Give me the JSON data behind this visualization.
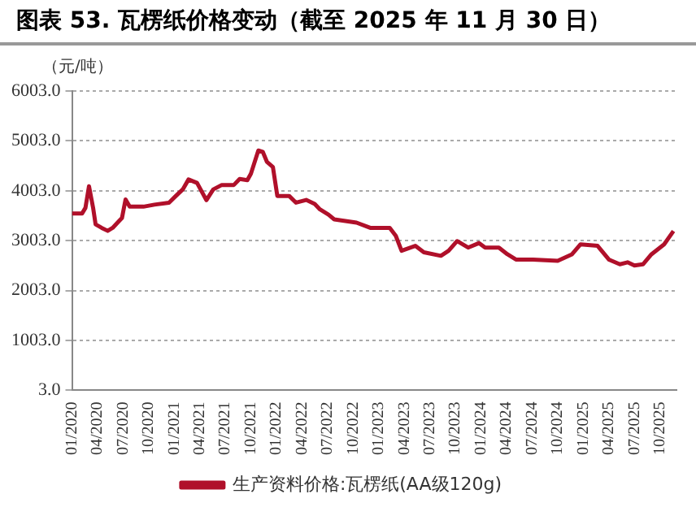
{
  "chart_data": {
    "type": "line",
    "title": "图表 53. 瓦楞纸价格变动（截至 2025 年 11 月 30 日）",
    "ylabel": "（元/吨）",
    "x": [
      "2020-01-01",
      "2020-02-07",
      "2020-02-19",
      "2020-03-01",
      "2020-03-16",
      "2020-03-25",
      "2020-04-16",
      "2020-05-07",
      "2020-05-25",
      "2020-06-16",
      "2020-06-28",
      "2020-07-10",
      "2020-07-25",
      "2020-09-13",
      "2020-10-22",
      "2020-12-13",
      "2021-01-07",
      "2021-02-01",
      "2021-02-22",
      "2021-03-22",
      "2021-04-25",
      "2021-05-19",
      "2021-06-19",
      "2021-08-01",
      "2021-08-22",
      "2021-09-19",
      "2021-10-01",
      "2021-10-28",
      "2021-11-13",
      "2021-11-28",
      "2021-12-19",
      "2022-01-04",
      "2022-02-16",
      "2022-03-10",
      "2022-04-16",
      "2022-05-16",
      "2022-06-04",
      "2022-07-04",
      "2022-07-25",
      "2022-10-13",
      "2022-12-01",
      "2023-02-10",
      "2023-03-01",
      "2023-03-22",
      "2023-05-10",
      "2023-06-10",
      "2023-08-10",
      "2023-09-07",
      "2023-10-07",
      "2023-11-16",
      "2023-12-25",
      "2024-01-16",
      "2024-03-04",
      "2024-04-04",
      "2024-05-04",
      "2024-07-04",
      "2024-10-01",
      "2024-11-22",
      "2024-12-22",
      "2025-02-22",
      "2025-04-01",
      "2025-05-10",
      "2025-06-07",
      "2025-07-01",
      "2025-08-01",
      "2025-09-01",
      "2025-10-16",
      "2025-11-19"
    ],
    "series": [
      {
        "name": "生产资料价格:瓦楞纸(AA级120g)",
        "color": "#b0102a",
        "values": [
          3550,
          3550,
          3660,
          4095,
          3660,
          3330,
          3260,
          3200,
          3260,
          3390,
          3460,
          3830,
          3685,
          3685,
          3725,
          3765,
          3900,
          4030,
          4230,
          4160,
          3815,
          4030,
          4120,
          4120,
          4240,
          4215,
          4345,
          4810,
          4785,
          4585,
          4480,
          3900,
          3900,
          3765,
          3820,
          3740,
          3630,
          3525,
          3430,
          3365,
          3260,
          3260,
          3100,
          2800,
          2900,
          2770,
          2700,
          2800,
          2995,
          2865,
          2955,
          2865,
          2865,
          2730,
          2625,
          2625,
          2600,
          2730,
          2930,
          2900,
          2625,
          2530,
          2570,
          2505,
          2530,
          2730,
          2930,
          3195
        ]
      }
    ],
    "xlim": [
      "2020-01-01",
      "2025-11-30"
    ],
    "xticks": [
      {
        "value": "2020-01",
        "label": "01/2020"
      },
      {
        "value": "2020-04",
        "label": "04/2020"
      },
      {
        "value": "2020-07",
        "label": "07/2020"
      },
      {
        "value": "2020-10",
        "label": "10/2020"
      },
      {
        "value": "2021-01",
        "label": "01/2021"
      },
      {
        "value": "2021-04",
        "label": "04/2021"
      },
      {
        "value": "2021-07",
        "label": "07/2021"
      },
      {
        "value": "2021-10",
        "label": "10/2021"
      },
      {
        "value": "2022-01",
        "label": "01/2022"
      },
      {
        "value": "2022-04",
        "label": "04/2022"
      },
      {
        "value": "2022-07",
        "label": "07/2022"
      },
      {
        "value": "2022-10",
        "label": "10/2022"
      },
      {
        "value": "2023-01",
        "label": "01/2023"
      },
      {
        "value": "2023-04",
        "label": "04/2023"
      },
      {
        "value": "2023-07",
        "label": "07/2023"
      },
      {
        "value": "2023-10",
        "label": "10/2023"
      },
      {
        "value": "2024-01",
        "label": "01/2024"
      },
      {
        "value": "2024-04",
        "label": "04/2024"
      },
      {
        "value": "2024-07",
        "label": "07/2024"
      },
      {
        "value": "2024-10",
        "label": "10/2024"
      },
      {
        "value": "2025-01",
        "label": "01/2025"
      },
      {
        "value": "2025-04",
        "label": "04/2025"
      },
      {
        "value": "2025-07",
        "label": "07/2025"
      },
      {
        "value": "2025-10",
        "label": "10/2025"
      }
    ],
    "ylim": [
      3,
      6003
    ],
    "yticks": [
      {
        "value": 3,
        "label": "3.0"
      },
      {
        "value": 1003,
        "label": "1003.0"
      },
      {
        "value": 2003,
        "label": "2003.0"
      },
      {
        "value": 3003,
        "label": "3003.0"
      },
      {
        "value": 4003,
        "label": "4003.0"
      },
      {
        "value": 5003,
        "label": "5003.0"
      },
      {
        "value": 6003,
        "label": "6003.0"
      }
    ],
    "grid": "y",
    "legend": "bottom",
    "marker": "none",
    "line_style": "solid"
  }
}
